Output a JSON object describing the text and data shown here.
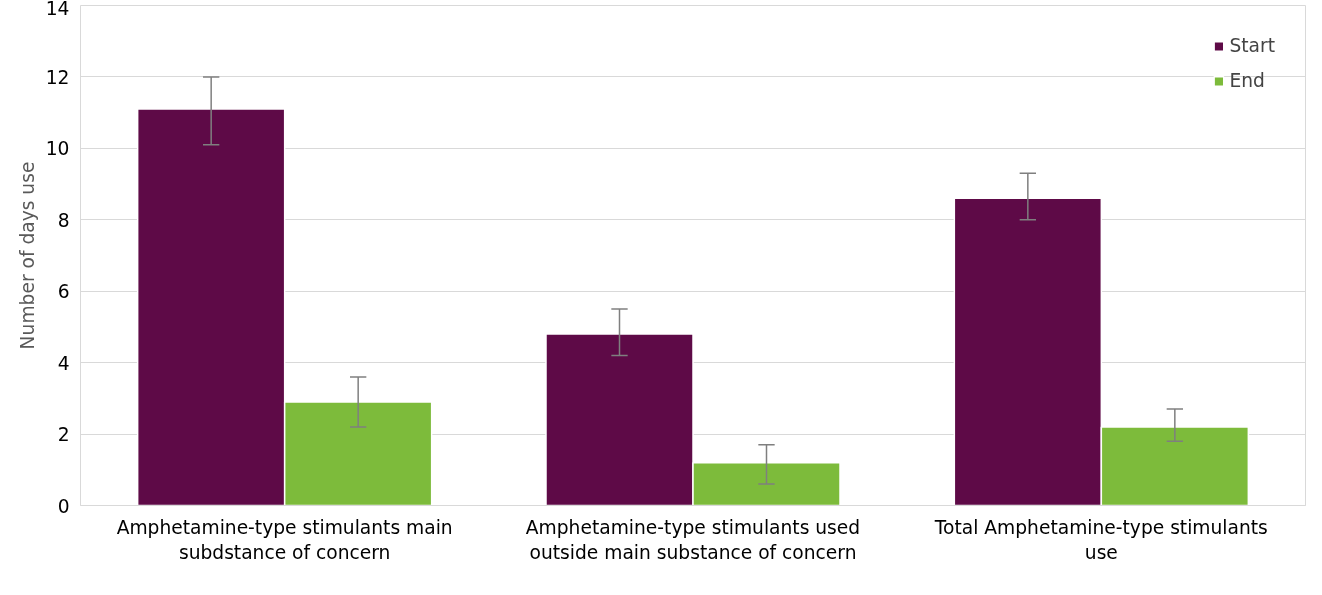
{
  "chart_data": {
    "type": "bar",
    "ylabel": "Number of days use",
    "categories": [
      "Amphetamine-type stimulants main subdstance of concern",
      "Amphetamine-type stimulants used outside main substance of concern",
      "Total Amphetamine-type stimulants use"
    ],
    "series": [
      {
        "name": "Start",
        "color": "#5e0a47",
        "values": [
          11.1,
          4.8,
          8.6
        ],
        "errors": [
          [
            10.1,
            12.0
          ],
          [
            4.2,
            5.5
          ],
          [
            8.0,
            9.3
          ]
        ]
      },
      {
        "name": "End",
        "color": "#7dbb3b",
        "values": [
          2.9,
          1.2,
          2.2
        ],
        "errors": [
          [
            2.2,
            3.6
          ],
          [
            0.6,
            1.7
          ],
          [
            1.8,
            2.7
          ]
        ]
      }
    ],
    "ylim": [
      0,
      14
    ],
    "yticks": [
      0,
      2,
      4,
      6,
      8,
      10,
      12,
      14
    ],
    "grid": "y",
    "legend": "top right"
  }
}
